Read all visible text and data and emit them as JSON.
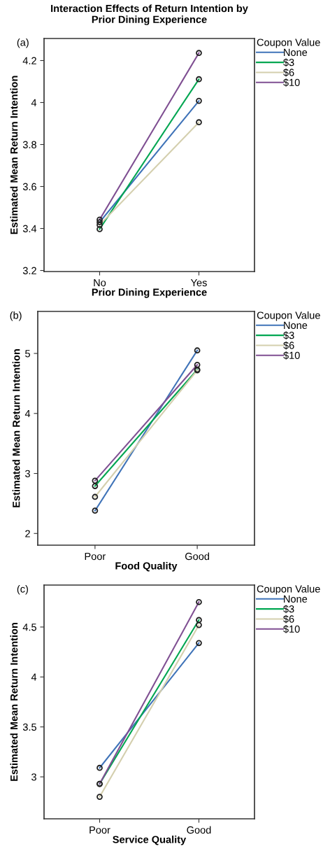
{
  "chart_data": [
    {
      "type": "line",
      "title": "Interaction Effects of Return Intention by\nPrior Dining Experience",
      "annotations": [
        "(a)"
      ],
      "xlabel": "Prior Dining Experience",
      "ylabel": "Estimated Mean Return Intention",
      "legend_title": "Coupon Value",
      "legend": "right",
      "marker": "circle",
      "line_style": "solid",
      "grid": false,
      "categories": [
        "No",
        "Yes"
      ],
      "ylim": [
        3.195,
        4.305
      ],
      "yticks": [
        {
          "value": 3.2,
          "label": "3.2"
        },
        {
          "value": 3.4,
          "label": "3.4"
        },
        {
          "value": 3.6,
          "label": "3.6"
        },
        {
          "value": 3.8,
          "label": "3.8"
        },
        4,
        {
          "value": 4.2,
          "label": "4.2"
        }
      ],
      "series": [
        {
          "name": "None",
          "color": "#3f73b8",
          "values": [
            3.43,
            4.008
          ]
        },
        {
          "name": "$3",
          "color": "#00a651",
          "values": [
            3.397,
            4.111
          ]
        },
        {
          "name": "$6",
          "color": "#d4cfae",
          "values": [
            3.417,
            3.906
          ]
        },
        {
          "name": "$10",
          "color": "#7f4f92",
          "values": [
            3.442,
            4.236
          ]
        }
      ]
    },
    {
      "type": "line",
      "annotations": [
        "(b)"
      ],
      "xlabel": "Food Quality",
      "ylabel": "Estimated Mean Return Intention",
      "legend_title": "Coupon Value",
      "legend": "right",
      "marker": "circle",
      "line_style": "solid",
      "grid": false,
      "categories": [
        "Poor",
        "Good"
      ],
      "ylim": [
        1.805,
        5.7
      ],
      "yticks": [
        2,
        3,
        4,
        5
      ],
      "series": [
        {
          "name": "None",
          "color": "#3f73b8",
          "values": [
            2.38,
            5.05
          ]
        },
        {
          "name": "$3",
          "color": "#00a651",
          "values": [
            2.79,
            4.73
          ]
        },
        {
          "name": "$6",
          "color": "#d4cfae",
          "values": [
            2.61,
            4.72
          ]
        },
        {
          "name": "$10",
          "color": "#7f4f92",
          "values": [
            2.88,
            4.81
          ]
        }
      ]
    },
    {
      "type": "line",
      "annotations": [
        "(c)"
      ],
      "xlabel": "Service Quality",
      "ylabel": "Estimated Mean Return Intention",
      "legend_title": "Coupon Value",
      "legend": "right",
      "marker": "circle",
      "line_style": "solid",
      "grid": false,
      "categories": [
        "Poor",
        "Good"
      ],
      "ylim": [
        2.58,
        4.92
      ],
      "yticks": [
        3,
        {
          "value": 3.5,
          "label": "3.5"
        },
        4,
        {
          "value": 4.5,
          "label": "4.5"
        }
      ],
      "series": [
        {
          "name": "None",
          "color": "#3f73b8",
          "values": [
            3.09,
            4.34
          ]
        },
        {
          "name": "$3",
          "color": "#00a651",
          "values": [
            2.93,
            4.57
          ]
        },
        {
          "name": "$6",
          "color": "#d4cfae",
          "values": [
            2.8,
            4.52
          ]
        },
        {
          "name": "$10",
          "color": "#7f4f92",
          "values": [
            2.93,
            4.75
          ]
        }
      ]
    }
  ]
}
